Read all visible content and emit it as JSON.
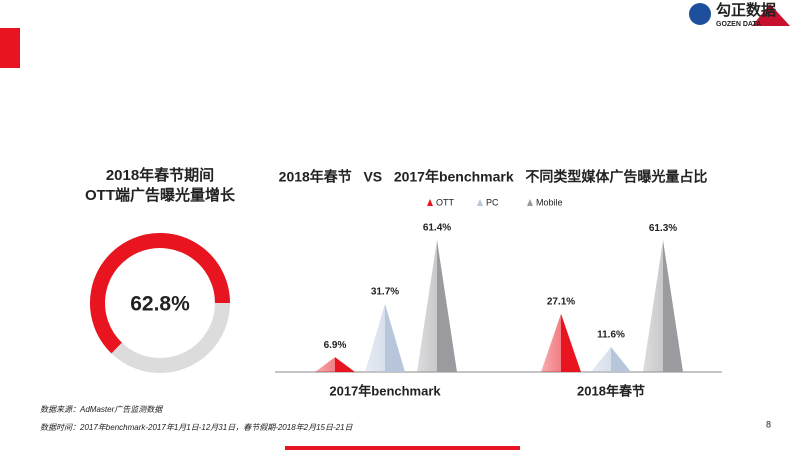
{
  "logo": {
    "name": "勾正数据",
    "sub": "GOZEN DATA"
  },
  "notes": [
    "数据来源：AdMaster广告监测数据",
    "数据时间：2017年benchmark-2017年1月1日-12月31日，春节假期-2018年2月15日-21日"
  ],
  "page_number": 8,
  "chart_data": [
    {
      "type": "donut",
      "title": [
        "2018年春节期间",
        "OTT端广告曝光量增长"
      ],
      "values": [
        62.8
      ],
      "value_labels": [
        "62.8%"
      ],
      "color": "#e8141f",
      "track_color": "#dcdcdc"
    },
    {
      "type": "triangle",
      "title": "2018年春节   VS   2017年benchmark   不同类型媒体广告曝光量占比",
      "categories": [
        "2017年benchmark",
        "2018年春节"
      ],
      "series": [
        {
          "name": "OTT",
          "color": "#e8141f",
          "values": [
            6.9,
            27.1
          ],
          "value_labels": [
            "6.9%",
            "27.1%"
          ]
        },
        {
          "name": "PC",
          "color": "#b8c6dc",
          "values": [
            31.7,
            11.6
          ],
          "value_labels": [
            "31.7%",
            "11.6%"
          ]
        },
        {
          "name": "Mobile",
          "color": "#9c9a9e",
          "values": [
            61.4,
            61.3
          ],
          "value_labels": [
            "61.4%",
            "61.3%"
          ]
        }
      ]
    }
  ]
}
